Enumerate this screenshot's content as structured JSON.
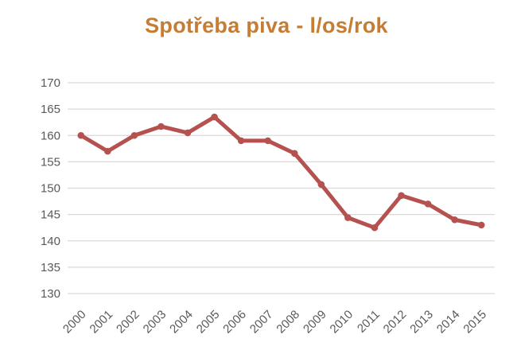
{
  "chart_data": {
    "type": "line",
    "title": "Spotřeba piva - l/os/rok",
    "categories": [
      "2000",
      "2001",
      "2002",
      "2003",
      "2004",
      "2005",
      "2006",
      "2007",
      "2008",
      "2009",
      "2010",
      "2011",
      "2012",
      "2013",
      "2014",
      "2015"
    ],
    "values": [
      160,
      157,
      160,
      161.7,
      160.5,
      163.5,
      159,
      159,
      156.6,
      150.7,
      144.4,
      142.5,
      148.6,
      147,
      144,
      143
    ],
    "xlabel": "",
    "ylabel": "",
    "ylim": [
      130,
      170
    ],
    "ytick_step": 5,
    "ytick_labels": [
      "130",
      "135",
      "140",
      "145",
      "150",
      "155",
      "160",
      "165",
      "170"
    ],
    "grid": true,
    "legend": "none",
    "marker": "circle",
    "x_label_rotation": -45,
    "colors": {
      "line": "#b5524f",
      "marker": "#b5524f",
      "title": "#c67c32",
      "axis_labels": "#595959",
      "gridlines": "#d9d9d9",
      "background": "#ffffff"
    }
  }
}
